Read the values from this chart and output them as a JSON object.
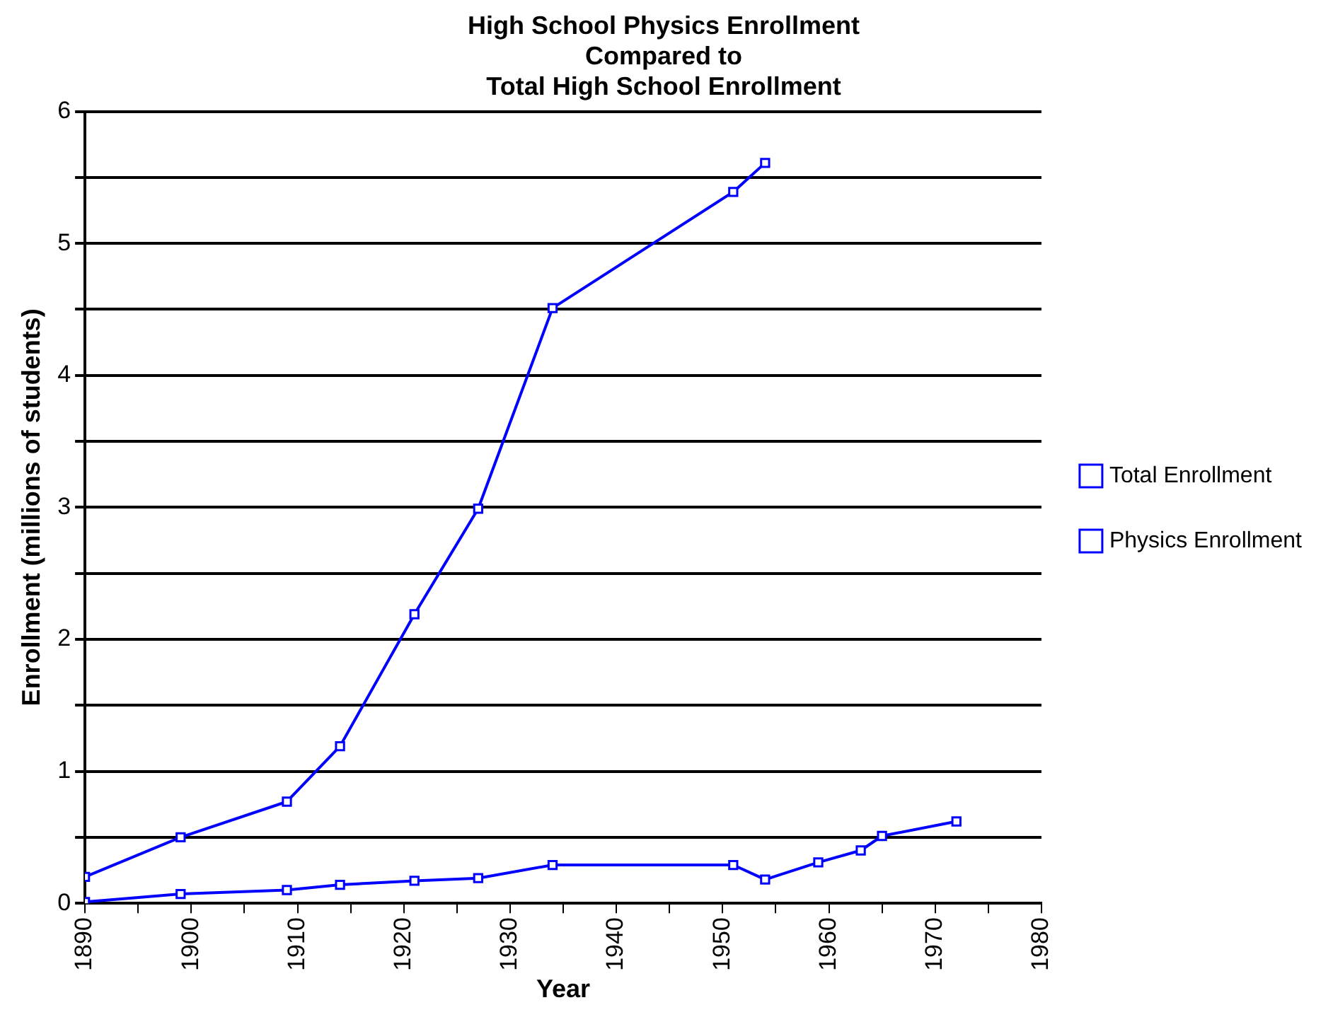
{
  "chart_data": {
    "type": "line",
    "title": "High School Physics Enrollment\nCompared to\nTotal High School Enrollment",
    "xlabel": "Year",
    "ylabel": "Enrollment (millions of students)",
    "series": [
      {
        "name": "Total Enrollment",
        "color": "#0000ff",
        "x": [
          1890,
          1899,
          1909,
          1914,
          1921,
          1927,
          1934,
          1951,
          1954
        ],
        "values": [
          0.2,
          0.5,
          0.77,
          1.19,
          2.19,
          2.99,
          4.51,
          5.39,
          5.61
        ]
      },
      {
        "name": "Physics Enrollment",
        "color": "#0000ff",
        "x": [
          1890,
          1899,
          1909,
          1914,
          1921,
          1927,
          1934,
          1951,
          1954,
          1959,
          1963,
          1965,
          1972
        ],
        "values": [
          0.01,
          0.07,
          0.1,
          0.14,
          0.17,
          0.19,
          0.29,
          0.29,
          0.18,
          0.31,
          0.4,
          0.51,
          0.62
        ]
      }
    ],
    "xlim": [
      1890,
      1980
    ],
    "xticks": [
      1890,
      {
        "value": 1895,
        "label": null
      },
      1900,
      {
        "value": 1905,
        "label": null
      },
      1910,
      {
        "value": 1915,
        "label": null
      },
      1920,
      {
        "value": 1925,
        "label": null
      },
      1930,
      {
        "value": 1935,
        "label": null
      },
      1940,
      {
        "value": 1945,
        "label": null
      },
      1950,
      {
        "value": 1955,
        "label": null
      },
      1960,
      {
        "value": 1965,
        "label": null
      },
      1970,
      {
        "value": 1975,
        "label": null
      },
      1980
    ],
    "ylim": [
      0,
      6
    ],
    "yticks": [
      0,
      {
        "value": 0.5,
        "label": null
      },
      1,
      {
        "value": 1.5,
        "label": null
      },
      2,
      {
        "value": 2.5,
        "label": null
      },
      3,
      {
        "value": 3.5,
        "label": null
      },
      4,
      {
        "value": 4.5,
        "label": null
      },
      5,
      {
        "value": 5.5,
        "label": null
      },
      6
    ],
    "grid": "y",
    "legend": "right",
    "marker": "square",
    "line_style": "solid"
  }
}
